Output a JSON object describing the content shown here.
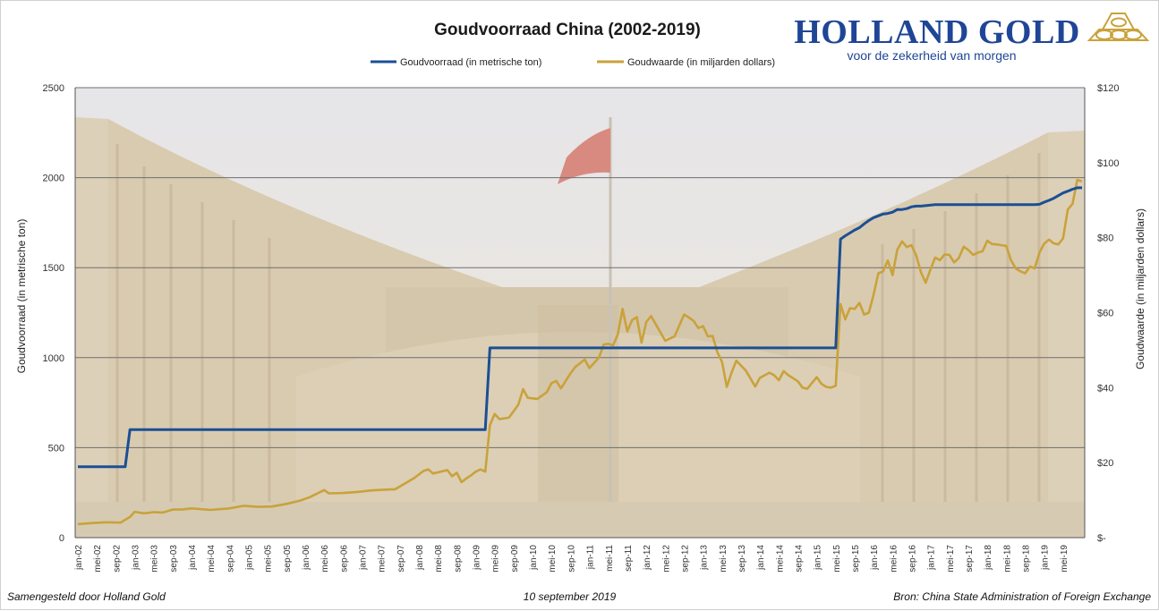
{
  "title": "Goudvoorraad China (2002-2019)",
  "logo": {
    "brand": "HOLLAND GOLD",
    "tagline": "voor de zekerheid van morgen"
  },
  "footer": {
    "left": "Samengesteld door Holland Gold",
    "center": "10 september 2019",
    "right": "Bron: China State Administration of Foreign Exchange"
  },
  "colors": {
    "gold_reserve": "#1b4f95",
    "gold_value": "#c9a23a",
    "grid": "#6e6e6e"
  },
  "chart_data": {
    "type": "line",
    "title": "Goudvoorraad China (2002-2019)",
    "legend_position": "top-center",
    "grid": true,
    "x_axis": {
      "start": "jan-02",
      "end": "sep-19",
      "tick_labels": [
        "jan-02",
        "mei-02",
        "sep-02",
        "jan-03",
        "mei-03",
        "sep-03",
        "jan-04",
        "mei-04",
        "sep-04",
        "jan-05",
        "mei-05",
        "sep-05",
        "jan-06",
        "mei-06",
        "sep-06",
        "jan-07",
        "mei-07",
        "sep-07",
        "jan-08",
        "mei-08",
        "sep-08",
        "jan-09",
        "mei-09",
        "sep-09",
        "jan-10",
        "mei-10",
        "sep-10",
        "jan-11",
        "mei-11",
        "sep-11",
        "jan-12",
        "mei-12",
        "sep-12",
        "jan-13",
        "mei-13",
        "sep-13",
        "jan-14",
        "mei-14",
        "sep-14",
        "jan-15",
        "mei-15",
        "sep-15",
        "jan-16",
        "mei-16",
        "sep-16",
        "jan-17",
        "mei-17",
        "sep-17",
        "jan-18",
        "mei-18",
        "sep-18",
        "jan-19",
        "mei-19"
      ]
    },
    "y_left": {
      "label": "Goudvoorraad (in metrische ton)",
      "min": 0,
      "max": 2500,
      "ticks": [
        0,
        500,
        1000,
        1500,
        2000,
        2500
      ],
      "tick_labels": [
        "0",
        "500",
        "1000",
        "1500",
        "2000",
        "2500"
      ]
    },
    "y_right": {
      "label": "Goudwaarde (in miljarden dollars)",
      "min": 0,
      "max": 120,
      "ticks": [
        0,
        20,
        40,
        60,
        80,
        100,
        120
      ],
      "tick_labels": [
        "$-",
        "$20",
        "$40",
        "$60",
        "$80",
        "$100",
        "$120"
      ]
    },
    "series": [
      {
        "name": "Goudvoorraad (in metrische ton)",
        "axis": "left",
        "step": true,
        "points": [
          [
            "jan-02",
            394
          ],
          [
            "nov-02",
            394
          ],
          [
            "dec-02",
            600
          ],
          [
            "mrt-09",
            600
          ],
          [
            "apr-09",
            1054
          ],
          [
            "mei-15",
            1054
          ],
          [
            "jun-15",
            1658
          ],
          [
            "jul-15",
            1677
          ],
          [
            "aug-15",
            1693
          ],
          [
            "sep-15",
            1709
          ],
          [
            "okt-15",
            1722
          ],
          [
            "nov-15",
            1743
          ],
          [
            "dec-15",
            1762
          ],
          [
            "jan-16",
            1778
          ],
          [
            "feb-16",
            1788
          ],
          [
            "mrt-16",
            1798
          ],
          [
            "apr-16",
            1801
          ],
          [
            "mei-16",
            1808
          ],
          [
            "jun-16",
            1823
          ],
          [
            "jul-16",
            1823
          ],
          [
            "aug-16",
            1828
          ],
          [
            "sep-16",
            1838
          ],
          [
            "okt-16",
            1842
          ],
          [
            "nov-16",
            1842
          ],
          [
            "feb-17",
            1850
          ],
          [
            "nov-18",
            1850
          ],
          [
            "dec-18",
            1852
          ],
          [
            "jan-19",
            1864
          ],
          [
            "feb-19",
            1874
          ],
          [
            "mrt-19",
            1885
          ],
          [
            "apr-19",
            1900
          ],
          [
            "mei-19",
            1915
          ],
          [
            "jun-19",
            1925
          ],
          [
            "jul-19",
            1936
          ],
          [
            "aug-19",
            1944
          ],
          [
            "sep-19",
            1944
          ]
        ]
      },
      {
        "name": "Goudwaarde (in miljarden dollars)",
        "axis": "right",
        "step": false,
        "points": [
          [
            "jan-02",
            3.6
          ],
          [
            "apr-02",
            3.9
          ],
          [
            "jul-02",
            4.1
          ],
          [
            "okt-02",
            4.0
          ],
          [
            "dec-02",
            5.5
          ],
          [
            "jan-03",
            6.9
          ],
          [
            "mrt-03",
            6.5
          ],
          [
            "mei-03",
            6.8
          ],
          [
            "jul-03",
            6.7
          ],
          [
            "sep-03",
            7.5
          ],
          [
            "nov-03",
            7.5
          ],
          [
            "jan-04",
            7.8
          ],
          [
            "mei-04",
            7.4
          ],
          [
            "sep-04",
            7.8
          ],
          [
            "dec-04",
            8.5
          ],
          [
            "mrt-05",
            8.2
          ],
          [
            "jun-05",
            8.3
          ],
          [
            "sep-05",
            9.0
          ],
          [
            "dec-05",
            9.9
          ],
          [
            "feb-06",
            10.8
          ],
          [
            "mei-06",
            12.7
          ],
          [
            "jun-06",
            11.8
          ],
          [
            "sep-06",
            11.9
          ],
          [
            "dec-06",
            12.2
          ],
          [
            "mrt-07",
            12.6
          ],
          [
            "jun-07",
            12.8
          ],
          [
            "aug-07",
            12.9
          ],
          [
            "okt-07",
            14.4
          ],
          [
            "dec-07",
            15.9
          ],
          [
            "feb-08",
            17.8
          ],
          [
            "mrt-08",
            18.2
          ],
          [
            "apr-08",
            17.1
          ],
          [
            "jul-08",
            18.0
          ],
          [
            "aug-08",
            16.4
          ],
          [
            "sep-08",
            17.3
          ],
          [
            "okt-08",
            14.8
          ],
          [
            "nov-08",
            15.8
          ],
          [
            "dec-08",
            16.6
          ],
          [
            "jan-09",
            17.6
          ],
          [
            "feb-09",
            18.2
          ],
          [
            "mrt-09",
            17.6
          ],
          [
            "apr-09",
            30.0
          ],
          [
            "mei-09",
            33.0
          ],
          [
            "jun-09",
            31.6
          ],
          [
            "aug-09",
            32.0
          ],
          [
            "sep-09",
            33.7
          ],
          [
            "okt-09",
            35.5
          ],
          [
            "nov-09",
            39.6
          ],
          [
            "dec-09",
            37.3
          ],
          [
            "feb-10",
            37.0
          ],
          [
            "apr-10",
            38.8
          ],
          [
            "mei-10",
            41.2
          ],
          [
            "jun-10",
            41.8
          ],
          [
            "jul-10",
            39.8
          ],
          [
            "sep-10",
            43.8
          ],
          [
            "okt-10",
            45.5
          ],
          [
            "dec-10",
            47.5
          ],
          [
            "jan-11",
            45.2
          ],
          [
            "mrt-11",
            48.0
          ],
          [
            "apr-11",
            51.5
          ],
          [
            "mei-11",
            51.7
          ],
          [
            "jun-11",
            51.3
          ],
          [
            "jul-11",
            54.2
          ],
          [
            "aug-11",
            61.0
          ],
          [
            "sep-11",
            55.0
          ],
          [
            "okt-11",
            58.0
          ],
          [
            "nov-11",
            58.8
          ],
          [
            "dec-11",
            52.0
          ],
          [
            "jan-12",
            57.5
          ],
          [
            "feb-12",
            59.1
          ],
          [
            "mei-12",
            52.5
          ],
          [
            "jul-12",
            53.7
          ],
          [
            "sep-12",
            59.5
          ],
          [
            "okt-12",
            58.7
          ],
          [
            "nov-12",
            57.8
          ],
          [
            "dec-12",
            55.9
          ],
          [
            "jan-13",
            56.4
          ],
          [
            "feb-13",
            53.7
          ],
          [
            "mrt-13",
            53.8
          ],
          [
            "apr-13",
            49.5
          ],
          [
            "mei-13",
            46.8
          ],
          [
            "jun-13",
            40.2
          ],
          [
            "jul-13",
            44.0
          ],
          [
            "aug-13",
            47.2
          ],
          [
            "okt-13",
            44.6
          ],
          [
            "nov-13",
            42.5
          ],
          [
            "dec-13",
            40.3
          ],
          [
            "jan-14",
            42.6
          ],
          [
            "mrt-14",
            44.0
          ],
          [
            "apr-14",
            43.3
          ],
          [
            "mei-14",
            42.0
          ],
          [
            "jun-14",
            44.4
          ],
          [
            "jul-14",
            43.3
          ],
          [
            "sep-14",
            41.7
          ],
          [
            "okt-14",
            40.0
          ],
          [
            "nov-14",
            39.7
          ],
          [
            "jan-15",
            42.8
          ],
          [
            "feb-15",
            41.0
          ],
          [
            "mrt-15",
            40.2
          ],
          [
            "apr-15",
            40.0
          ],
          [
            "mei-15",
            40.5
          ],
          [
            "jun-15",
            62.3
          ],
          [
            "jul-15",
            58.2
          ],
          [
            "aug-15",
            61.2
          ],
          [
            "sep-15",
            61.0
          ],
          [
            "okt-15",
            62.6
          ],
          [
            "nov-15",
            59.5
          ],
          [
            "dec-15",
            60.0
          ],
          [
            "jan-16",
            64.8
          ],
          [
            "feb-16",
            70.5
          ],
          [
            "mrt-16",
            71.0
          ],
          [
            "apr-16",
            73.9
          ],
          [
            "mei-16",
            70.0
          ],
          [
            "jun-16",
            76.8
          ],
          [
            "jul-16",
            79.0
          ],
          [
            "aug-16",
            77.5
          ],
          [
            "sep-16",
            78.0
          ],
          [
            "okt-16",
            75.2
          ],
          [
            "nov-16",
            70.7
          ],
          [
            "dec-16",
            68.0
          ],
          [
            "jan-17",
            71.5
          ],
          [
            "feb-17",
            74.7
          ],
          [
            "mrt-17",
            74.0
          ],
          [
            "apr-17",
            75.5
          ],
          [
            "mei-17",
            75.4
          ],
          [
            "jun-17",
            73.4
          ],
          [
            "jul-17",
            74.6
          ],
          [
            "aug-17",
            77.6
          ],
          [
            "sep-17",
            76.7
          ],
          [
            "okt-17",
            75.4
          ],
          [
            "nov-17",
            76.0
          ],
          [
            "dec-17",
            76.4
          ],
          [
            "jan-18",
            79.2
          ],
          [
            "feb-18",
            78.3
          ],
          [
            "mrt-18",
            78.2
          ],
          [
            "apr-18",
            78.0
          ],
          [
            "mei-18",
            77.8
          ],
          [
            "jun-18",
            74.0
          ],
          [
            "jul-18",
            71.8
          ],
          [
            "aug-18",
            71.0
          ],
          [
            "sep-18",
            70.5
          ],
          [
            "okt-18",
            72.3
          ],
          [
            "nov-18",
            71.8
          ],
          [
            "dec-18",
            76.0
          ],
          [
            "jan-19",
            78.4
          ],
          [
            "feb-19",
            79.5
          ],
          [
            "mrt-19",
            78.5
          ],
          [
            "apr-19",
            78.2
          ],
          [
            "mei-19",
            79.8
          ],
          [
            "jun-19",
            87.5
          ],
          [
            "jul-19",
            89.0
          ],
          [
            "aug-19",
            95.4
          ],
          [
            "sep-19",
            95.0
          ]
        ]
      }
    ]
  }
}
